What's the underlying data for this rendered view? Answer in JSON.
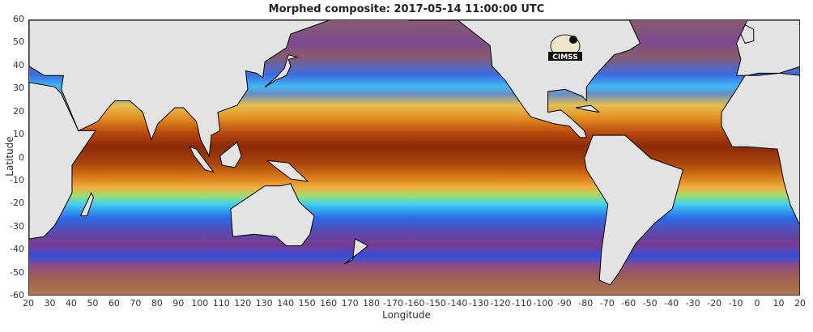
{
  "title": "Morphed composite: 2017-05-14 11:00:00 UTC",
  "x_axis": {
    "label": "Longitude",
    "ticks": [
      "20",
      "30",
      "40",
      "50",
      "60",
      "70",
      "80",
      "90",
      "100",
      "110",
      "120",
      "130",
      "140",
      "150",
      "160",
      "170",
      "180",
      "-170",
      "-160",
      "-150",
      "-140",
      "-130",
      "-120",
      "-110",
      "-100",
      "-90",
      "-80",
      "-70",
      "-60",
      "-50",
      "-40",
      "-30",
      "-20",
      "-10",
      "0",
      "10",
      "20"
    ]
  },
  "y_axis": {
    "label": "Latitude",
    "ticks": [
      "60",
      "50",
      "40",
      "30",
      "20",
      "10",
      "0",
      "-10",
      "-20",
      "-30",
      "-40",
      "-50",
      "-60"
    ]
  },
  "logo": {
    "text": "CIMSS"
  },
  "colors": {
    "land": "#e3e3e3",
    "coast": "#000000",
    "equator_moist": "#8a2a08",
    "dry": "#8a5a70",
    "mid": "#40d0f0"
  }
}
